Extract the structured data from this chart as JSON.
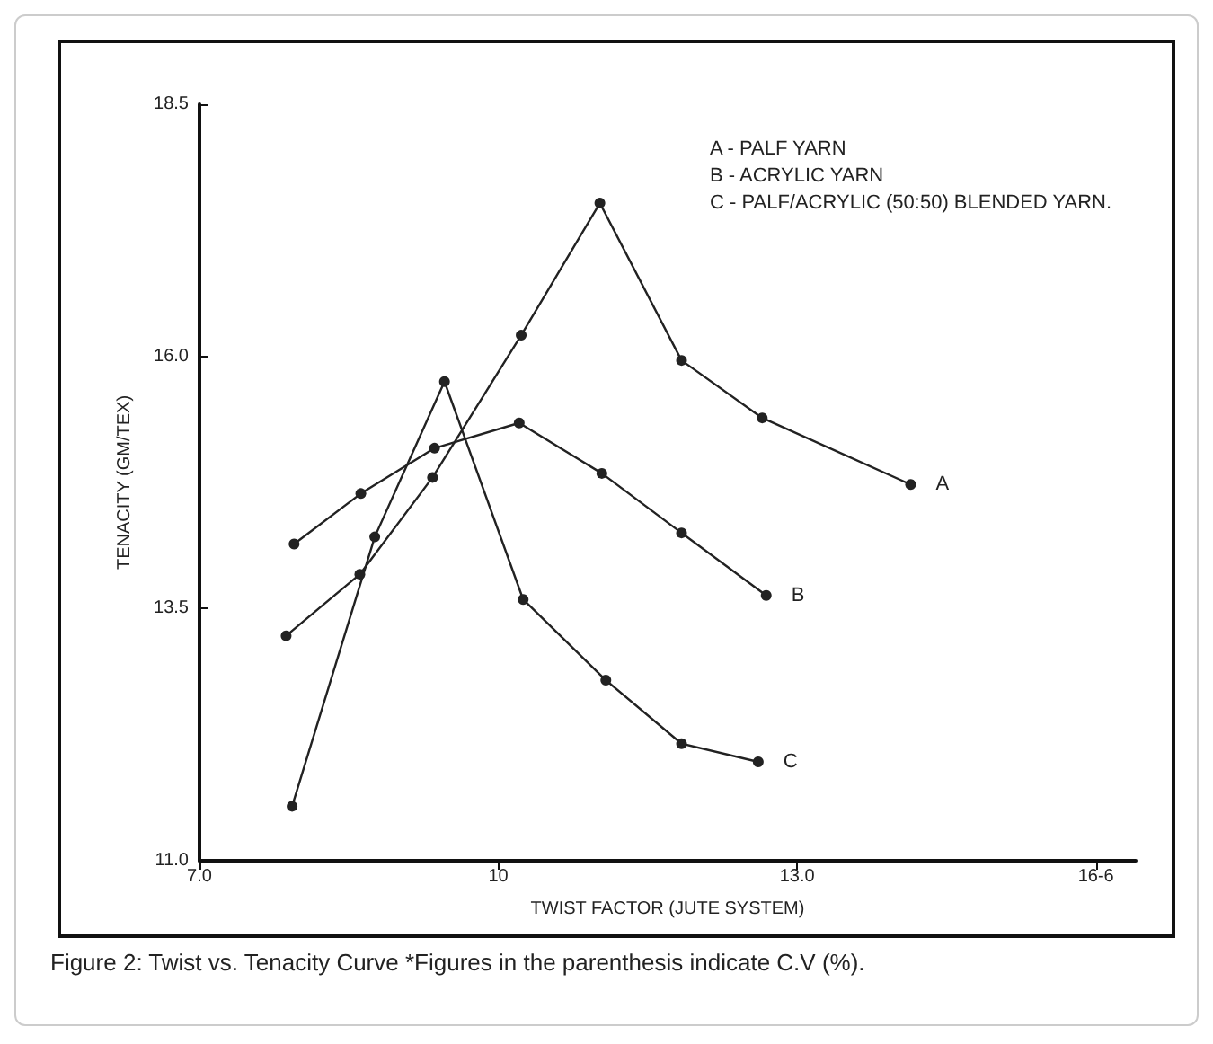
{
  "chart_data": {
    "type": "line",
    "xlabel": "TWIST FACTOR (JUTE SYSTEM)",
    "ylabel": "TENACITY (GM/TEX)",
    "series": [
      {
        "name": "A",
        "color": "#222222",
        "x": [
          7.87,
          8.61,
          9.34,
          10.23,
          11.02,
          11.84,
          12.65,
          14.14
        ],
        "values": [
          13.23,
          13.84,
          14.8,
          16.21,
          17.52,
          15.96,
          15.39,
          14.73
        ]
      },
      {
        "name": "B",
        "color": "#222222",
        "x": [
          7.95,
          8.62,
          9.36,
          10.21,
          11.04,
          11.84,
          12.69
        ],
        "values": [
          14.14,
          14.64,
          15.09,
          15.34,
          14.84,
          14.25,
          13.63
        ]
      },
      {
        "name": "C",
        "color": "#222222",
        "x": [
          7.93,
          8.76,
          9.46,
          10.25,
          11.08,
          11.84,
          12.61
        ],
        "values": [
          11.54,
          14.21,
          15.75,
          13.59,
          12.79,
          12.16,
          11.98
        ]
      }
    ],
    "xlim": [
      7,
      16.4
    ],
    "xticks": [
      {
        "value": 7,
        "label": "7.0"
      },
      10,
      {
        "value": 13,
        "label": "13.0"
      },
      {
        "value": 16,
        "label": "16-6"
      }
    ],
    "ylim": [
      11,
      18.5
    ],
    "yticks": [
      {
        "value": 11,
        "label": "11.0"
      },
      13.5,
      {
        "value": 16,
        "label": "16.0"
      },
      18.5
    ],
    "annotations": [
      "A - PALF YARN",
      "B - ACRYLIC YARN",
      "C - PALF/ACRYLIC (50:50) BLENDED YARN.",
      "Figure 2: Twist vs. Tenacity Curve *Figures in the parenthesis indicate C.V (%)."
    ],
    "grid": false,
    "legend": false,
    "marker": "circle",
    "line_style": "solid"
  }
}
